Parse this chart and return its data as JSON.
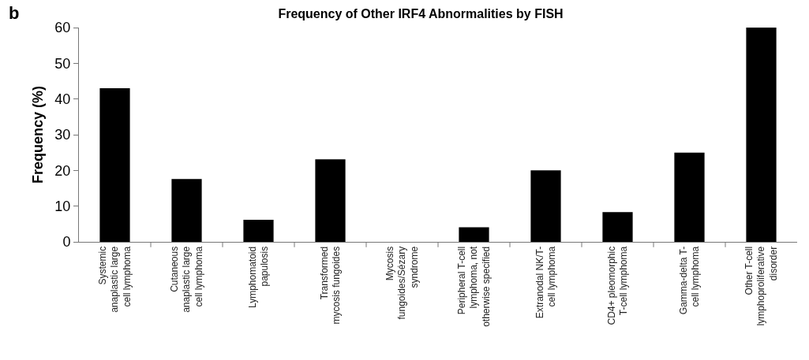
{
  "chart_data": {
    "type": "bar",
    "title": "Frequency of Other IRF4 Abnormalities by FISH",
    "ylabel": "Frequency (%)",
    "annotations": [
      "b"
    ],
    "categories": [
      "Systemic\nanaplastic large\ncell lymphoma",
      "Cutaneous\nanaplastic large\ncell lymphoma",
      "Lymphomatoid\npapulosis",
      "Transformed\nmycosis fungoides",
      "Mycosis\nfungoides/Sézary\nsyndrome",
      "Peripheral T-cell\nlymphoma, not\notherwise specified",
      "Extranodal NK/T-\ncell lymphoma",
      "CD4+ pleomorphic\nT-cell lymphoma",
      "Gamma-delta T-\ncell lymphoma",
      "Other T-cell\nlymphoproliferative\ndisorder"
    ],
    "values": [
      43,
      17.6,
      6.2,
      23.1,
      0,
      4.1,
      20,
      8.3,
      25,
      60
    ],
    "color": "#000000",
    "ylim": [
      0,
      60
    ],
    "yticks": [
      0,
      10,
      20,
      30,
      40,
      50,
      60
    ]
  }
}
